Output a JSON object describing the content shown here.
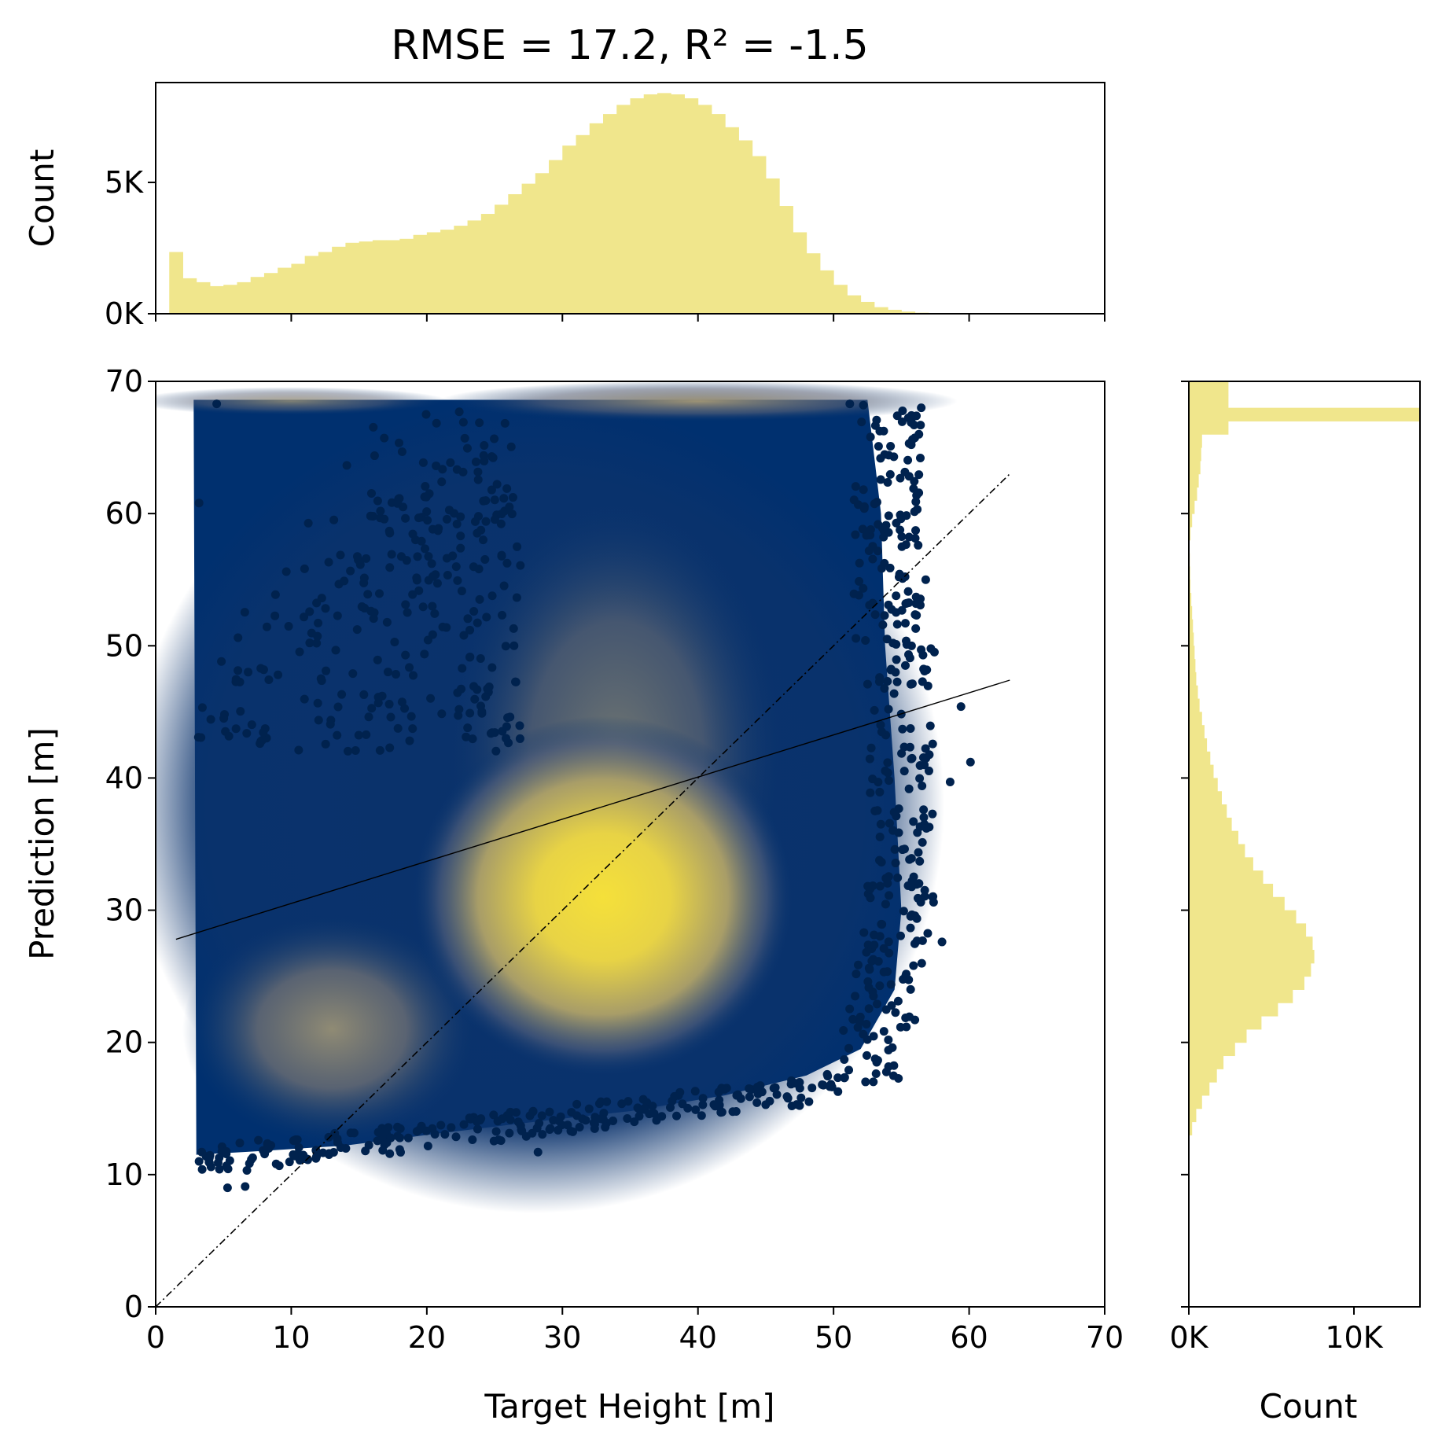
{
  "chart_data": {
    "type": "scatter",
    "title": "RMSE = 17.2, R² = -1.5",
    "colors": {
      "hist": "#f0e68c",
      "density_low": "#00306f",
      "density_mid": "#7c7b78",
      "density_high": "#f2dc3a",
      "point": "#00224e"
    },
    "main": {
      "xlabel": "Target Height [m]",
      "ylabel": "Prediction [m]",
      "xlim": [
        0,
        70
      ],
      "ylim": [
        0,
        70
      ],
      "x_ticks": [
        0,
        10,
        20,
        30,
        40,
        50,
        60,
        70
      ],
      "x_tick_labels": [
        "0",
        "10",
        "20",
        "30",
        "40",
        "50",
        "60",
        "70"
      ],
      "y_ticks": [
        0,
        10,
        20,
        30,
        40,
        50,
        60,
        70
      ],
      "y_tick_labels": [
        "0",
        "10",
        "20",
        "30",
        "40",
        "50",
        "60",
        "70"
      ],
      "identity_line": {
        "x": [
          0,
          63
        ],
        "y": [
          0,
          63
        ],
        "style": "dash-dot"
      },
      "fit_line": {
        "x": [
          1.5,
          63
        ],
        "y": [
          27.8,
          47.4
        ],
        "style": "solid"
      },
      "density_peaks": [
        {
          "x": 33,
          "y": 31,
          "level": 1.0
        },
        {
          "x": 13,
          "y": 21,
          "level": 0.55
        },
        {
          "x": 40,
          "y": 68.5,
          "level": 0.5
        }
      ],
      "outliers": [
        [
          5.3,
          9
        ],
        [
          6.6,
          9.1
        ],
        [
          3.2,
          11
        ],
        [
          28.2,
          11.7
        ],
        [
          18,
          11.9
        ],
        [
          56,
          21.7
        ],
        [
          58,
          27.6
        ],
        [
          60.1,
          41.2
        ],
        [
          59.4,
          45.4
        ],
        [
          58.6,
          39.7
        ],
        [
          57.3,
          31
        ],
        [
          56.7,
          36.5
        ],
        [
          55.4,
          50.1
        ],
        [
          56.8,
          55
        ],
        [
          56.4,
          64.2
        ],
        [
          54.7,
          67.4
        ],
        [
          52.2,
          68.2
        ],
        [
          51.2,
          68.3
        ],
        [
          3.2,
          60.8
        ],
        [
          4.5,
          68.3
        ]
      ]
    },
    "top_hist": {
      "ylabel": "Count",
      "ylim": [
        0,
        8800
      ],
      "y_ticks": [
        0,
        5000
      ],
      "y_tick_labels": [
        "0K",
        "5K"
      ],
      "bin_edges_start": 1,
      "bin_width": 1,
      "counts": [
        2350,
        1350,
        1200,
        1050,
        1100,
        1200,
        1400,
        1550,
        1750,
        1900,
        2200,
        2350,
        2550,
        2700,
        2750,
        2800,
        2800,
        2850,
        3000,
        3100,
        3200,
        3350,
        3550,
        3800,
        4150,
        4550,
        4950,
        5350,
        5850,
        6400,
        6800,
        7250,
        7600,
        7950,
        8200,
        8350,
        8400,
        8350,
        8200,
        7950,
        7600,
        7100,
        6600,
        6000,
        5150,
        4100,
        3100,
        2300,
        1650,
        1100,
        700,
        450,
        250,
        150,
        80,
        40,
        15,
        5,
        0
      ]
    },
    "right_hist": {
      "xlabel": "Count",
      "xlim": [
        0,
        14000
      ],
      "x_ticks": [
        0,
        10000
      ],
      "x_tick_labels": [
        "0K",
        "10K"
      ],
      "bin_edges_start": 13,
      "bin_width": 1,
      "counts": [
        200,
        450,
        800,
        1250,
        1700,
        2100,
        2800,
        3500,
        4400,
        5400,
        6300,
        7000,
        7400,
        7600,
        7500,
        7100,
        6500,
        5800,
        5100,
        4500,
        3900,
        3400,
        3000,
        2600,
        2300,
        2000,
        1750,
        1500,
        1300,
        1100,
        950,
        800,
        650,
        550,
        450,
        400,
        350,
        300,
        250,
        200,
        150,
        100,
        80,
        60,
        50,
        100,
        200,
        350,
        500,
        600,
        700,
        750,
        800,
        2400,
        14000,
        2400,
        2400
      ]
    }
  }
}
